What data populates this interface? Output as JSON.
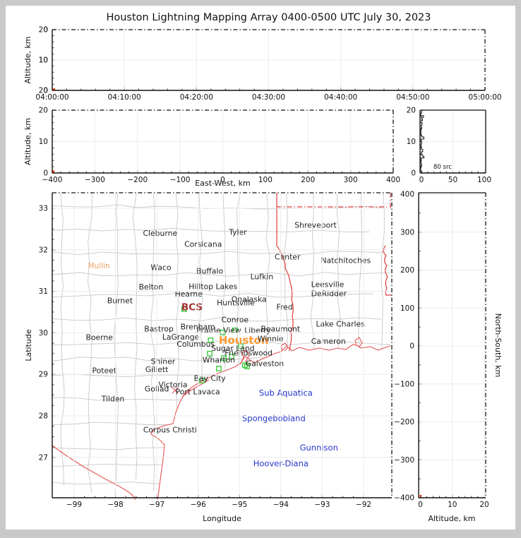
{
  "title": "Houston Lightning Mapping Array 0400-0500 UTC July 30, 2023",
  "colors": {
    "figure_bg": "#ffffff",
    "frame_bg": "#c9c9c9",
    "axis": "#111111",
    "grid": "#ececec",
    "county_line": "#c8c8c8",
    "state_border": "#e03c3c",
    "coastline": "#e65555",
    "station": "#3ccc3c",
    "city_text": "#1f1f1f",
    "offshore_text": "#2233cc",
    "metro_text": "#ff9933",
    "network_text": "#a03030",
    "town_text": "#eda05f",
    "source_dot": "#dd2200",
    "source_dot_glow": "#ff9900",
    "histogram_line": "#111111"
  },
  "chart_data": [
    {
      "id": "time_altitude",
      "type": "scatter",
      "position": "top-strip",
      "ylabel": "Altitude, km",
      "x_tick_labels": [
        "04:00:00",
        "04:10:00",
        "04:20:00",
        "04:30:00",
        "04:40:00",
        "04:50:00",
        "05:00:00"
      ],
      "y_tick_labels": [
        "0",
        "10",
        "20"
      ],
      "xlim": [
        "04:00:00",
        "05:00:00"
      ],
      "ylim": [
        0,
        20
      ],
      "points": [
        {
          "t_frac": 0.004,
          "alt_km": 0.4
        }
      ]
    },
    {
      "id": "ew_altitude",
      "type": "scatter",
      "position": "second-strip",
      "xlabel": "East-West, km",
      "ylabel": "Altitude, km",
      "x_tick_labels": [
        "−400",
        "−300",
        "−200",
        "−100",
        "0",
        "100",
        "200",
        "300",
        "400"
      ],
      "y_tick_labels": [
        "0",
        "10",
        "20"
      ],
      "xlim": [
        -400,
        400
      ],
      "ylim": [
        0,
        20
      ],
      "points": [
        {
          "ew_km": -398,
          "alt_km": 0.5
        }
      ]
    },
    {
      "id": "alt_histogram",
      "type": "histogram",
      "position": "second-strip-right",
      "x_tick_labels": [
        "0",
        "50",
        "100"
      ],
      "y_tick_labels": [
        "0",
        "10",
        "20"
      ],
      "xlim": [
        0,
        100
      ],
      "ylim": [
        0,
        20
      ],
      "annotation": "80 src"
    },
    {
      "id": "plan_map",
      "type": "map",
      "position": "main",
      "xlabel": "Longitude",
      "ylabel": "Latitude",
      "lon_tick_labels": [
        "−99",
        "−98",
        "−97",
        "−96",
        "−95",
        "−94",
        "−93",
        "−92"
      ],
      "lat_tick_labels": [
        "33",
        "32",
        "31",
        "30",
        "29",
        "28",
        "27"
      ],
      "lon_lim": [
        -99.53,
        -91.32
      ],
      "lat_lim": [
        26.03,
        33.37
      ],
      "cities": [
        {
          "name": "Cleburne",
          "lon": -96.92,
          "lat": 32.4,
          "style": "city"
        },
        {
          "name": "Tyler",
          "lon": -95.04,
          "lat": 32.42,
          "style": "city"
        },
        {
          "name": "Corsicana",
          "lon": -95.88,
          "lat": 32.13,
          "style": "city"
        },
        {
          "name": "Shreveport",
          "lon": -93.16,
          "lat": 32.59,
          "style": "city"
        },
        {
          "name": "Mullin",
          "lon": -98.4,
          "lat": 31.61,
          "style": "town"
        },
        {
          "name": "Waco",
          "lon": -96.9,
          "lat": 31.57,
          "style": "city"
        },
        {
          "name": "Buffalo",
          "lon": -95.72,
          "lat": 31.49,
          "style": "city"
        },
        {
          "name": "Lufkin",
          "lon": -94.46,
          "lat": 31.35,
          "style": "city"
        },
        {
          "name": "Center",
          "lon": -93.84,
          "lat": 31.83,
          "style": "city"
        },
        {
          "name": "Natchitoches",
          "lon": -92.43,
          "lat": 31.74,
          "style": "city"
        },
        {
          "name": "Belton",
          "lon": -97.14,
          "lat": 31.1,
          "style": "city"
        },
        {
          "name": "Hilltop Lakes",
          "lon": -95.64,
          "lat": 31.11,
          "style": "city"
        },
        {
          "name": "Hearne",
          "lon": -96.23,
          "lat": 30.93,
          "style": "city"
        },
        {
          "name": "Onalaska",
          "lon": -94.77,
          "lat": 30.81,
          "style": "city"
        },
        {
          "name": "Huntsville",
          "lon": -95.09,
          "lat": 30.72,
          "style": "city"
        },
        {
          "name": "Leesville",
          "lon": -92.87,
          "lat": 31.16,
          "style": "city"
        },
        {
          "name": "DeRidder",
          "lon": -92.84,
          "lat": 30.94,
          "style": "city"
        },
        {
          "name": "Burnet",
          "lon": -97.89,
          "lat": 30.77,
          "style": "city"
        },
        {
          "name": "Fred",
          "lon": -93.91,
          "lat": 30.62,
          "style": "city"
        },
        {
          "name": "BCS",
          "lon": -96.15,
          "lat": 30.6,
          "style": "network"
        },
        {
          "name": "Conroe",
          "lon": -95.11,
          "lat": 30.31,
          "style": "city"
        },
        {
          "name": "Bastrop",
          "lon": -96.95,
          "lat": 30.09,
          "style": "city"
        },
        {
          "name": "Brenham",
          "lon": -96.01,
          "lat": 30.14,
          "style": "city"
        },
        {
          "name": "Prairie View",
          "lon": -95.5,
          "lat": 30.06,
          "style": "city"
        },
        {
          "name": "Liberty",
          "lon": -94.56,
          "lat": 30.06,
          "style": "city"
        },
        {
          "name": "Beaumont",
          "lon": -94.01,
          "lat": 30.09,
          "style": "city"
        },
        {
          "name": "Lake Charles",
          "lon": -92.56,
          "lat": 30.21,
          "style": "city"
        },
        {
          "name": "LaGrange",
          "lon": -96.42,
          "lat": 29.9,
          "style": "city"
        },
        {
          "name": "Boerne",
          "lon": -98.39,
          "lat": 29.89,
          "style": "city"
        },
        {
          "name": "Columbus",
          "lon": -96.06,
          "lat": 29.73,
          "style": "city"
        },
        {
          "name": "Houston",
          "lon": -94.9,
          "lat": 29.79,
          "style": "metro"
        },
        {
          "name": "Winnie",
          "lon": -94.25,
          "lat": 29.85,
          "style": "city"
        },
        {
          "name": "Cameron",
          "lon": -92.85,
          "lat": 29.79,
          "style": "city"
        },
        {
          "name": "Sugar Land",
          "lon": -95.16,
          "lat": 29.62,
          "style": "city"
        },
        {
          "name": "Friendswood",
          "lon": -94.78,
          "lat": 29.51,
          "style": "city"
        },
        {
          "name": "Shiner",
          "lon": -96.85,
          "lat": 29.31,
          "style": "city"
        },
        {
          "name": "Wharton",
          "lon": -95.5,
          "lat": 29.34,
          "style": "city"
        },
        {
          "name": "Galveston",
          "lon": -94.39,
          "lat": 29.26,
          "style": "city"
        },
        {
          "name": "Poteet",
          "lon": -98.27,
          "lat": 29.09,
          "style": "city"
        },
        {
          "name": "Giliett",
          "lon": -97.0,
          "lat": 29.11,
          "style": "city"
        },
        {
          "name": "Bay City",
          "lon": -95.72,
          "lat": 28.9,
          "style": "city"
        },
        {
          "name": "Victoria",
          "lon": -96.61,
          "lat": 28.75,
          "style": "city"
        },
        {
          "name": "Goliad",
          "lon": -97.0,
          "lat": 28.65,
          "style": "city"
        },
        {
          "name": "Port Lavaca",
          "lon": -96.01,
          "lat": 28.58,
          "style": "city"
        },
        {
          "name": "Tilden",
          "lon": -98.06,
          "lat": 28.41,
          "style": "city"
        },
        {
          "name": "Sub Aquatica",
          "lon": -93.88,
          "lat": 28.54,
          "style": "offshore"
        },
        {
          "name": "Corpus Christi",
          "lon": -96.68,
          "lat": 27.66,
          "style": "city"
        },
        {
          "name": "Spongebobland",
          "lon": -94.17,
          "lat": 27.93,
          "style": "offshore"
        },
        {
          "name": "Gunnison",
          "lon": -93.08,
          "lat": 27.23,
          "style": "offshore"
        },
        {
          "name": "Hoover-Diana",
          "lon": -94.0,
          "lat": 26.84,
          "style": "offshore"
        }
      ],
      "stations": [
        [
          -96.34,
          30.57
        ],
        [
          -95.41,
          30.01
        ],
        [
          -95.11,
          30.06
        ],
        [
          -95.7,
          29.82
        ],
        [
          -95.72,
          29.5
        ],
        [
          -95.38,
          29.39
        ],
        [
          -95.19,
          29.43
        ],
        [
          -94.97,
          29.68
        ],
        [
          -94.87,
          29.22
        ],
        [
          -94.82,
          29.19
        ],
        [
          -95.5,
          29.14
        ],
        [
          -95.91,
          28.85
        ]
      ]
    },
    {
      "id": "ns_altitude",
      "type": "scatter",
      "position": "right-column",
      "xlabel": "Altitude, km",
      "ylabel": "North-South, km",
      "x_tick_labels": [
        "0",
        "10",
        "20"
      ],
      "y_tick_labels": [
        "400",
        "300",
        "200",
        "100",
        "0",
        "−100",
        "−200",
        "−300",
        "−400"
      ],
      "xlim": [
        0,
        20
      ],
      "ylim": [
        -400,
        400
      ],
      "points": [
        {
          "alt_km": 0.4,
          "ns_km": -397
        }
      ]
    }
  ]
}
